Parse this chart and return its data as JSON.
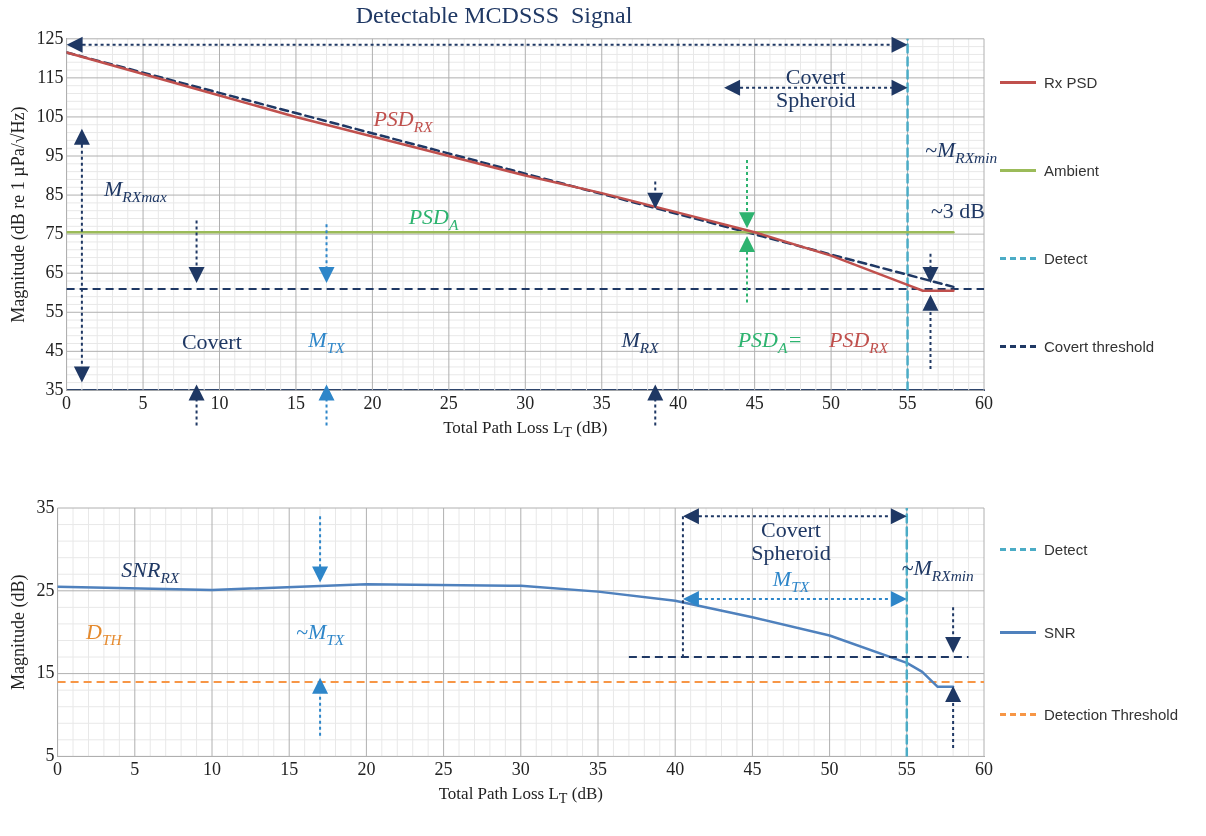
{
  "chart_data": [
    {
      "type": "line",
      "title": "Detectable MCDSSS  Signal",
      "xlabel": "Total Path Loss L$_{T}$ (dB)",
      "ylabel": "Magnitude (dB re 1 µPa/√Hz)",
      "xlim": [
        0,
        60
      ],
      "xticks": [
        0,
        5,
        10,
        15,
        20,
        25,
        30,
        35,
        40,
        45,
        50,
        55,
        60
      ],
      "ylim": [
        35,
        125
      ],
      "yticks": [
        35,
        45,
        55,
        65,
        75,
        85,
        95,
        105,
        115,
        125
      ],
      "grid": true,
      "legend": "right",
      "marker": "none",
      "series": [
        {
          "name": "Rx PSD",
          "color": "#c0504d",
          "x": [
            0,
            5,
            10,
            15,
            20,
            25,
            30,
            35,
            40,
            45,
            50,
            55,
            56,
            58
          ],
          "values": [
            121.5,
            116,
            110.5,
            105,
            100,
            95,
            90,
            85.5,
            80.5,
            75.5,
            69.5,
            62,
            60.5,
            60.5
          ]
        },
        {
          "name": "Ambient",
          "color": "#9bbb59",
          "x": [
            0,
            58
          ],
          "values": [
            75.5,
            75.5
          ]
        },
        {
          "color": "#1f3864",
          "line_style": "dashed",
          "x": [
            0,
            58
          ],
          "values": [
            121.5,
            61.5
          ]
        },
        {
          "name": "Detect",
          "color": "#4bacc6",
          "line_style": "dashed",
          "x": [
            55,
            55
          ],
          "values": [
            35,
            125
          ]
        }
      ],
      "ref_lines": [
        {
          "axis": "y",
          "value": 61,
          "label": "Covert threshold",
          "color": "#1f3864",
          "line_style": "dashed"
        }
      ],
      "annotations": [
        "Covert Spheroid",
        "PSD$_{RX}$",
        "~M$_{RXmin}$",
        "M$_{RXmax}$",
        "~3 dB",
        "PSD$_{A}$",
        "Covert",
        "M$_{TX}$",
        "M$_{RX}$",
        "PSD$_{A}$=",
        "PSD$_{RX}$"
      ]
    },
    {
      "type": "line",
      "xlabel": "Total Path Loss L$_{T}$ (dB)",
      "ylabel": "Magnitude (dB)",
      "xlim": [
        0,
        60
      ],
      "xticks": [
        0,
        5,
        10,
        15,
        20,
        25,
        30,
        35,
        40,
        45,
        50,
        55,
        60
      ],
      "ylim": [
        5,
        35
      ],
      "yticks": [
        5,
        15,
        25,
        35
      ],
      "grid": true,
      "legend": "right",
      "marker": "none",
      "series": [
        {
          "name": "Detect",
          "color": "#4bacc6",
          "line_style": "dashed",
          "x": [
            55,
            55
          ],
          "values": [
            5,
            35
          ]
        },
        {
          "name": "SNR",
          "color": "#4f81bd",
          "x": [
            0,
            10,
            20,
            30,
            35,
            40,
            45,
            50,
            55,
            56,
            57,
            58
          ],
          "values": [
            25.5,
            25.1,
            25.8,
            25.6,
            24.9,
            23.8,
            21.8,
            19.6,
            16.3,
            15.2,
            13.4,
            13.4
          ]
        }
      ],
      "ref_lines": [
        {
          "axis": "y",
          "value": 14,
          "label": "Detection Threshold",
          "color": "#f79646",
          "line_style": "dashed"
        }
      ],
      "annotations": [
        "Covert Spheroid",
        "SNR$_{RX}$",
        "M$_{TX}$",
        "~M$_{RXmin}$",
        "D$_{TH}$",
        "~M$_{TX}$"
      ]
    }
  ]
}
